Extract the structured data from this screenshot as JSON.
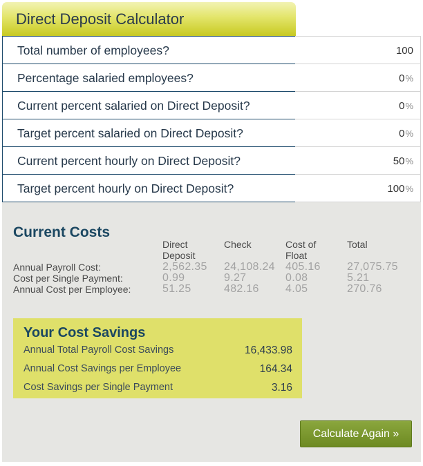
{
  "title": "Direct Deposit Calculator",
  "inputs": [
    {
      "label": "Total number of employees?",
      "value": "100",
      "unit": ""
    },
    {
      "label": "Percentage salaried employees?",
      "value": "0",
      "unit": "%"
    },
    {
      "label": "Current percent salaried on Direct Deposit?",
      "value": "0",
      "unit": "%"
    },
    {
      "label": "Target percent salaried on Direct Deposit?",
      "value": "0",
      "unit": "%"
    },
    {
      "label": "Current percent hourly on Direct Deposit?",
      "value": "50",
      "unit": "%"
    },
    {
      "label": "Target percent hourly on Direct Deposit?",
      "value": "100",
      "unit": "%"
    }
  ],
  "current_costs": {
    "title": "Current Costs",
    "columns": [
      "Direct Deposit",
      "Check",
      "Cost of Float",
      "Total"
    ],
    "rows": [
      {
        "label": "Annual Payroll Cost:",
        "values": [
          "2,562.35",
          "24,108.24",
          "405.16",
          "27,075.75"
        ]
      },
      {
        "label": "Cost per Single Payment:",
        "values": [
          "0.99",
          "9.27",
          "0.08",
          "5.21"
        ]
      },
      {
        "label": "Annual Cost per Employee:",
        "values": [
          "51.25",
          "482.16",
          "4.05",
          "270.76"
        ]
      }
    ]
  },
  "savings": {
    "title": "Your Cost Savings",
    "rows": [
      {
        "label": "Annual Total Payroll Cost Savings",
        "value": "16,433.98"
      },
      {
        "label": "Annual Cost Savings per Employee",
        "value": "164.34"
      },
      {
        "label": "Cost Savings per Single Payment",
        "value": "3.16"
      }
    ]
  },
  "button": {
    "label": "Calculate Again »"
  }
}
